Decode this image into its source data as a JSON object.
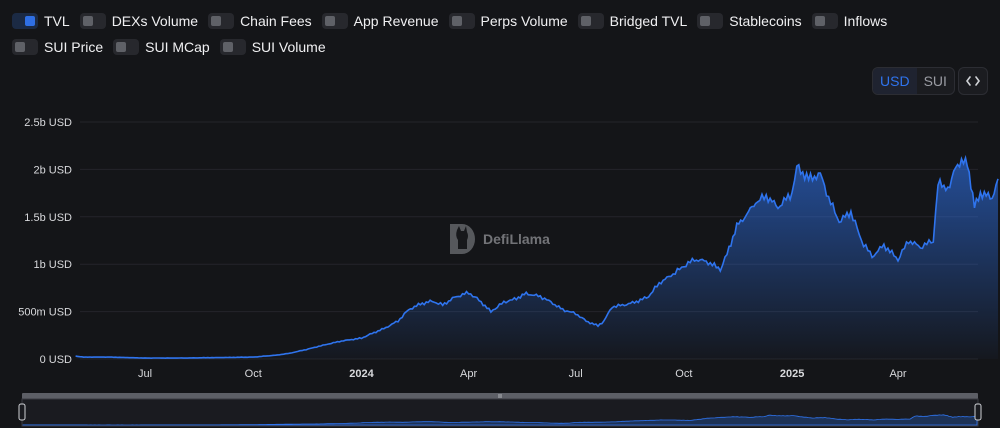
{
  "toggles": [
    {
      "label": "TVL",
      "on": true
    },
    {
      "label": "DEXs Volume",
      "on": false
    },
    {
      "label": "Chain Fees",
      "on": false
    },
    {
      "label": "App Revenue",
      "on": false
    },
    {
      "label": "Perps Volume",
      "on": false
    },
    {
      "label": "Bridged TVL",
      "on": false
    },
    {
      "label": "Stablecoins",
      "on": false
    },
    {
      "label": "Inflows",
      "on": false
    },
    {
      "label": "SUI Price",
      "on": false
    },
    {
      "label": "SUI MCap",
      "on": false
    },
    {
      "label": "SUI Volume",
      "on": false
    }
  ],
  "denomination": {
    "usd": "USD",
    "sui": "SUI",
    "active": "USD"
  },
  "watermark": "DefiLlama",
  "colors": {
    "line": "#2f74ee",
    "accent": "#2f74ee"
  },
  "chart_data": {
    "type": "area",
    "title": "",
    "xlabel": "",
    "ylabel": "",
    "ylim": [
      0,
      2.5
    ],
    "y_unit": "b USD",
    "y_ticks": [
      "0 USD",
      "500m USD",
      "1b USD",
      "1.5b USD",
      "2b USD",
      "2.5b USD"
    ],
    "y_tick_values": [
      0,
      0.5,
      1,
      1.5,
      2,
      2.5
    ],
    "x_ticks": [
      "Jul",
      "Oct",
      "2024",
      "Apr",
      "Jul",
      "Oct",
      "2025",
      "Apr"
    ],
    "x_tick_dates": [
      "2023-07-01",
      "2023-10-01",
      "2024-01-01",
      "2024-04-01",
      "2024-07-01",
      "2024-10-01",
      "2025-01-01",
      "2025-04-01"
    ],
    "grid": true,
    "legend": "none",
    "series": [
      {
        "name": "TVL",
        "points": [
          [
            "2023-05-03",
            0.03
          ],
          [
            "2023-05-10",
            0.02
          ],
          [
            "2023-06-01",
            0.02
          ],
          [
            "2023-07-01",
            0.01
          ],
          [
            "2023-08-01",
            0.01
          ],
          [
            "2023-09-01",
            0.015
          ],
          [
            "2023-10-01",
            0.02
          ],
          [
            "2023-10-20",
            0.04
          ],
          [
            "2023-11-01",
            0.06
          ],
          [
            "2023-11-15",
            0.1
          ],
          [
            "2023-12-01",
            0.15
          ],
          [
            "2023-12-15",
            0.19
          ],
          [
            "2024-01-01",
            0.22
          ],
          [
            "2024-01-10",
            0.27
          ],
          [
            "2024-01-20",
            0.32
          ],
          [
            "2024-02-01",
            0.4
          ],
          [
            "2024-02-10",
            0.52
          ],
          [
            "2024-02-20",
            0.58
          ],
          [
            "2024-03-01",
            0.61
          ],
          [
            "2024-03-10",
            0.57
          ],
          [
            "2024-03-20",
            0.65
          ],
          [
            "2024-04-01",
            0.7
          ],
          [
            "2024-04-10",
            0.62
          ],
          [
            "2024-04-20",
            0.5
          ],
          [
            "2024-05-01",
            0.6
          ],
          [
            "2024-05-10",
            0.63
          ],
          [
            "2024-05-20",
            0.69
          ],
          [
            "2024-06-01",
            0.66
          ],
          [
            "2024-06-10",
            0.6
          ],
          [
            "2024-06-20",
            0.52
          ],
          [
            "2024-07-01",
            0.48
          ],
          [
            "2024-07-10",
            0.4
          ],
          [
            "2024-07-20",
            0.35
          ],
          [
            "2024-07-25",
            0.4
          ],
          [
            "2024-08-01",
            0.55
          ],
          [
            "2024-08-15",
            0.58
          ],
          [
            "2024-08-25",
            0.62
          ],
          [
            "2024-09-01",
            0.66
          ],
          [
            "2024-09-10",
            0.8
          ],
          [
            "2024-09-20",
            0.88
          ],
          [
            "2024-10-01",
            0.98
          ],
          [
            "2024-10-10",
            1.05
          ],
          [
            "2024-10-20",
            1.03
          ],
          [
            "2024-11-01",
            0.95
          ],
          [
            "2024-11-05",
            1.05
          ],
          [
            "2024-11-15",
            1.4
          ],
          [
            "2024-11-25",
            1.55
          ],
          [
            "2024-12-01",
            1.65
          ],
          [
            "2024-12-10",
            1.72
          ],
          [
            "2024-12-20",
            1.6
          ],
          [
            "2025-01-01",
            1.75
          ],
          [
            "2025-01-05",
            2.03
          ],
          [
            "2025-01-15",
            1.9
          ],
          [
            "2025-01-25",
            1.95
          ],
          [
            "2025-02-01",
            1.7
          ],
          [
            "2025-02-10",
            1.45
          ],
          [
            "2025-02-20",
            1.55
          ],
          [
            "2025-03-01",
            1.25
          ],
          [
            "2025-03-10",
            1.08
          ],
          [
            "2025-03-20",
            1.2
          ],
          [
            "2025-04-01",
            1.05
          ],
          [
            "2025-04-10",
            1.25
          ],
          [
            "2025-04-20",
            1.18
          ],
          [
            "2025-05-01",
            1.25
          ],
          [
            "2025-05-05",
            1.85
          ],
          [
            "2025-05-15",
            1.8
          ],
          [
            "2025-05-20",
            2.05
          ],
          [
            "2025-05-30",
            2.08
          ],
          [
            "2025-06-05",
            1.6
          ],
          [
            "2025-06-10",
            1.75
          ],
          [
            "2025-06-20",
            1.7
          ],
          [
            "2025-06-25",
            1.9
          ]
        ]
      }
    ]
  }
}
